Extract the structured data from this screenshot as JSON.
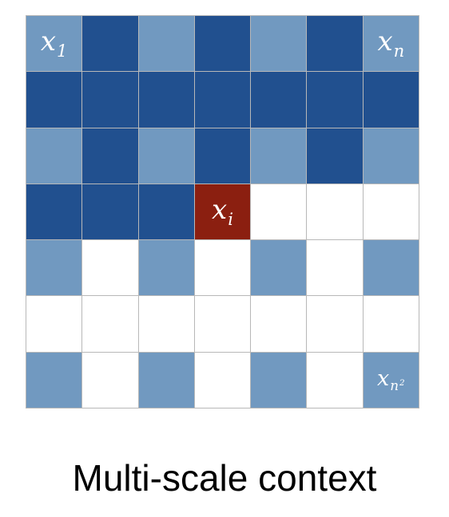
{
  "colors": {
    "dark": "#21508f",
    "medium": "#7199c0",
    "white": "#ffffff",
    "highlight": "#8b1f10"
  },
  "grid": {
    "rows": [
      [
        "medium",
        "dark",
        "medium",
        "dark",
        "medium",
        "dark",
        "medium"
      ],
      [
        "dark",
        "dark",
        "dark",
        "dark",
        "dark",
        "dark",
        "dark"
      ],
      [
        "medium",
        "dark",
        "medium",
        "dark",
        "medium",
        "dark",
        "medium"
      ],
      [
        "dark",
        "dark",
        "dark",
        "highlight",
        "white",
        "white",
        "white"
      ],
      [
        "medium",
        "white",
        "medium",
        "white",
        "medium",
        "white",
        "medium"
      ],
      [
        "white",
        "white",
        "white",
        "white",
        "white",
        "white",
        "white"
      ],
      [
        "medium",
        "white",
        "medium",
        "white",
        "medium",
        "white",
        "medium"
      ]
    ],
    "labels": [
      {
        "row": 0,
        "col": 0,
        "symbol": "x",
        "sub": "1",
        "sup": "",
        "name": "x1-label"
      },
      {
        "row": 0,
        "col": 6,
        "symbol": "x",
        "sub": "n",
        "sup": "",
        "name": "xn-label"
      },
      {
        "row": 3,
        "col": 3,
        "symbol": "x",
        "sub": "i",
        "sup": "",
        "name": "xi-label"
      },
      {
        "row": 6,
        "col": 6,
        "symbol": "x",
        "sub": "n",
        "sup": "2",
        "name": "xn2-label"
      }
    ]
  },
  "caption": "Multi-scale context"
}
